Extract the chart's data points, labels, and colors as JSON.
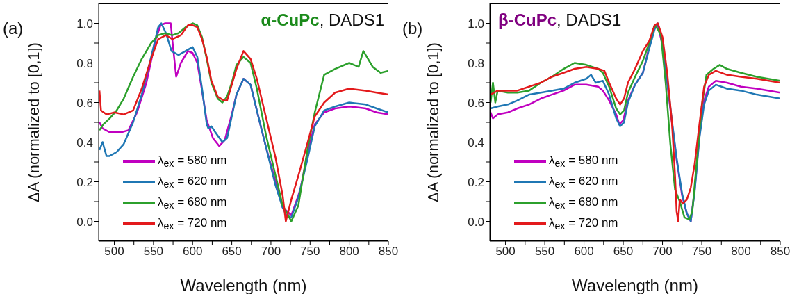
{
  "chart_data": [
    {
      "type": "line",
      "title": "α-CuPc, DADS1",
      "xlabel": "Wavelength (nm)",
      "ylabel": "ΔA (normalized to [0,1])",
      "annotations": [
        "(a)"
      ],
      "legend": "bottom left",
      "xlim": [
        480,
        850
      ],
      "ylim": [
        -0.1,
        1.1
      ],
      "xticks": [
        500,
        {
          "value": 525,
          "label": null
        },
        550,
        {
          "value": 575,
          "label": null
        },
        600,
        {
          "value": 625,
          "label": null
        },
        650,
        {
          "value": 675,
          "label": null
        },
        700,
        {
          "value": 725,
          "label": null
        },
        750,
        {
          "value": 775,
          "label": null
        },
        800,
        {
          "value": 825,
          "label": null
        },
        850
      ],
      "yticks": [
        {
          "value": 0,
          "label": "0.0"
        },
        {
          "value": 0.1,
          "label": null
        },
        0.2,
        {
          "value": 0.3,
          "label": null
        },
        0.4,
        {
          "value": 0.5,
          "label": null
        },
        0.6,
        {
          "value": 0.7,
          "label": null
        },
        0.8,
        {
          "value": 0.9,
          "label": null
        },
        {
          "value": 1,
          "label": "1.0"
        }
      ],
      "series": [
        {
          "name": "λ$_{ex}$ = 580 nm",
          "color": "#c000c0",
          "x": [
            481,
            485,
            494,
            509,
            518,
            529,
            541,
            553,
            559,
            565,
            572,
            575,
            579,
            585,
            594,
            600,
            606,
            612,
            618,
            626,
            634,
            641,
            650,
            656,
            665,
            674,
            682,
            694,
            706,
            715,
            721,
            726,
            735,
            738,
            747,
            756,
            768,
            782,
            800,
            821,
            835,
            850
          ],
          "values": [
            0.5,
            0.47,
            0.45,
            0.45,
            0.46,
            0.55,
            0.7,
            0.92,
            0.99,
            1.0,
            1.0,
            0.88,
            0.73,
            0.8,
            0.86,
            0.85,
            0.8,
            0.66,
            0.51,
            0.42,
            0.38,
            0.41,
            0.54,
            0.64,
            0.72,
            0.69,
            0.56,
            0.37,
            0.2,
            0.07,
            0.05,
            0.03,
            0.13,
            0.17,
            0.35,
            0.49,
            0.55,
            0.57,
            0.58,
            0.57,
            0.55,
            0.54
          ]
        },
        {
          "name": "λ$_{ex}$ = 620 nm",
          "color": "#1f77b4",
          "x": [
            481,
            485,
            490,
            494,
            503,
            512,
            524,
            535,
            547,
            556,
            560,
            566,
            573,
            582,
            591,
            600,
            606,
            612,
            618,
            620,
            624,
            629,
            638,
            644,
            650,
            656,
            665,
            674,
            682,
            694,
            706,
            715,
            721,
            726,
            735,
            747,
            756,
            768,
            782,
            800,
            821,
            835,
            850
          ],
          "values": [
            0.36,
            0.4,
            0.33,
            0.33,
            0.35,
            0.39,
            0.5,
            0.64,
            0.83,
            0.98,
            1.0,
            0.95,
            0.86,
            0.84,
            0.86,
            0.88,
            0.83,
            0.67,
            0.49,
            0.47,
            0.48,
            0.45,
            0.4,
            0.42,
            0.53,
            0.64,
            0.72,
            0.69,
            0.56,
            0.37,
            0.18,
            0.07,
            0.02,
            0.02,
            0.12,
            0.32,
            0.48,
            0.56,
            0.58,
            0.6,
            0.59,
            0.57,
            0.55
          ]
        },
        {
          "name": "λ$_{ex}$ = 680 nm",
          "color": "#2ca02c",
          "x": [
            481,
            486,
            494,
            503,
            512,
            524,
            535,
            547,
            556,
            565,
            574,
            582,
            591,
            600,
            606,
            612,
            618,
            624,
            632,
            638,
            644,
            650,
            656,
            665,
            674,
            682,
            694,
            706,
            715,
            721,
            726,
            735,
            747,
            756,
            768,
            782,
            800,
            812,
            818,
            830,
            840,
            850
          ],
          "values": [
            0.46,
            0.49,
            0.52,
            0.56,
            0.62,
            0.73,
            0.82,
            0.9,
            0.94,
            0.95,
            0.94,
            0.95,
            0.98,
            1.0,
            0.99,
            0.93,
            0.82,
            0.7,
            0.62,
            0.6,
            0.63,
            0.7,
            0.79,
            0.83,
            0.8,
            0.67,
            0.43,
            0.23,
            0.08,
            0.04,
            0.0,
            0.08,
            0.37,
            0.55,
            0.74,
            0.77,
            0.8,
            0.78,
            0.86,
            0.78,
            0.75,
            0.76
          ]
        },
        {
          "name": "λ$_{ex}$ = 720 nm",
          "color": "#e31a1c",
          "x": [
            481,
            483,
            490,
            500,
            512,
            524,
            535,
            547,
            556,
            566,
            574,
            585,
            594,
            600,
            606,
            612,
            618,
            624,
            632,
            640,
            644,
            650,
            656,
            665,
            674,
            682,
            694,
            706,
            715,
            719,
            726,
            735,
            747,
            756,
            768,
            782,
            800,
            821,
            835,
            850
          ],
          "values": [
            0.66,
            0.56,
            0.54,
            0.55,
            0.54,
            0.56,
            0.67,
            0.82,
            0.92,
            0.94,
            0.92,
            0.94,
            0.99,
            0.99,
            0.98,
            0.92,
            0.83,
            0.71,
            0.63,
            0.61,
            0.61,
            0.69,
            0.77,
            0.86,
            0.82,
            0.72,
            0.52,
            0.32,
            0.13,
            0.0,
            0.11,
            0.23,
            0.4,
            0.53,
            0.6,
            0.65,
            0.67,
            0.66,
            0.65,
            0.64
          ]
        }
      ]
    },
    {
      "type": "line",
      "title": "β-CuPc, DADS1",
      "xlabel": "Wavelength (nm)",
      "ylabel": "ΔA (normalized to [0,1])",
      "annotations": [
        "(b)"
      ],
      "legend": "bottom left",
      "xlim": [
        480,
        850
      ],
      "ylim": [
        -0.1,
        1.1
      ],
      "xticks": [
        500,
        {
          "value": 525,
          "label": null
        },
        550,
        {
          "value": 575,
          "label": null
        },
        600,
        {
          "value": 625,
          "label": null
        },
        650,
        {
          "value": 675,
          "label": null
        },
        700,
        {
          "value": 725,
          "label": null
        },
        750,
        {
          "value": 775,
          "label": null
        },
        800,
        {
          "value": 825,
          "label": null
        },
        850
      ],
      "yticks": [
        {
          "value": 0,
          "label": "0.0"
        },
        {
          "value": 0.1,
          "label": null
        },
        0.2,
        {
          "value": 0.3,
          "label": null
        },
        0.4,
        {
          "value": 0.5,
          "label": null
        },
        0.6,
        {
          "value": 0.7,
          "label": null
        },
        0.8,
        {
          "value": 0.9,
          "label": null
        },
        {
          "value": 1,
          "label": "1.0"
        }
      ],
      "series": [
        {
          "name": "λ$_{ex}$ = 580 nm",
          "color": "#c000c0",
          "x": [
            481,
            484,
            490,
            503,
            515,
            530,
            545,
            559,
            574,
            588,
            603,
            618,
            624,
            632,
            641,
            645,
            650,
            656,
            665,
            675,
            683,
            690,
            694,
            700,
            706,
            712,
            718,
            725,
            731,
            736,
            741,
            747,
            753,
            759,
            768,
            782,
            800,
            820,
            850
          ],
          "values": [
            0.55,
            0.52,
            0.54,
            0.55,
            0.57,
            0.59,
            0.62,
            0.64,
            0.66,
            0.69,
            0.69,
            0.68,
            0.66,
            0.61,
            0.54,
            0.49,
            0.51,
            0.61,
            0.69,
            0.75,
            0.88,
            0.99,
            0.99,
            0.89,
            0.7,
            0.5,
            0.31,
            0.13,
            0.04,
            0.0,
            0.16,
            0.43,
            0.61,
            0.68,
            0.71,
            0.7,
            0.68,
            0.67,
            0.65
          ]
        },
        {
          "name": "λ$_{ex}$ = 620 nm",
          "color": "#1f77b4",
          "x": [
            481,
            490,
            503,
            515,
            530,
            545,
            559,
            574,
            588,
            603,
            609,
            615,
            624,
            632,
            641,
            646,
            651,
            656,
            665,
            675,
            683,
            690,
            694,
            700,
            706,
            712,
            718,
            725,
            731,
            736,
            741,
            747,
            753,
            759,
            768,
            782,
            800,
            820,
            850
          ],
          "values": [
            0.57,
            0.58,
            0.59,
            0.61,
            0.64,
            0.65,
            0.66,
            0.67,
            0.7,
            0.72,
            0.74,
            0.7,
            0.71,
            0.64,
            0.52,
            0.48,
            0.5,
            0.6,
            0.69,
            0.75,
            0.87,
            0.97,
            1.0,
            0.9,
            0.71,
            0.51,
            0.32,
            0.14,
            0.04,
            0.0,
            0.15,
            0.42,
            0.59,
            0.66,
            0.69,
            0.67,
            0.66,
            0.64,
            0.62
          ]
        },
        {
          "name": "λ$_{ex}$ = 680 nm",
          "color": "#2ca02c",
          "x": [
            481,
            484,
            487,
            490,
            503,
            515,
            530,
            545,
            559,
            574,
            588,
            603,
            618,
            624,
            632,
            641,
            646,
            651,
            656,
            665,
            675,
            683,
            690,
            694,
            698,
            704,
            710,
            716,
            722,
            728,
            734,
            738,
            744,
            750,
            756,
            765,
            773,
            782,
            800,
            820,
            850
          ],
          "values": [
            0.6,
            0.7,
            0.6,
            0.66,
            0.65,
            0.65,
            0.66,
            0.7,
            0.73,
            0.77,
            0.8,
            0.79,
            0.77,
            0.75,
            0.68,
            0.57,
            0.54,
            0.56,
            0.65,
            0.73,
            0.81,
            0.9,
            0.99,
            0.97,
            0.94,
            0.7,
            0.39,
            0.16,
            0.1,
            0.02,
            0.01,
            0.05,
            0.32,
            0.58,
            0.74,
            0.77,
            0.79,
            0.77,
            0.75,
            0.73,
            0.71
          ]
        },
        {
          "name": "λ$_{ex}$ = 720 nm",
          "color": "#e31a1c",
          "x": [
            481,
            490,
            503,
            515,
            530,
            545,
            559,
            574,
            588,
            603,
            618,
            626,
            632,
            641,
            646,
            651,
            656,
            665,
            675,
            683,
            690,
            694,
            700,
            706,
            712,
            716,
            718,
            720,
            722,
            726,
            731,
            736,
            741,
            747,
            753,
            759,
            768,
            782,
            800,
            820,
            850
          ],
          "values": [
            0.64,
            0.66,
            0.66,
            0.66,
            0.68,
            0.7,
            0.73,
            0.75,
            0.77,
            0.78,
            0.77,
            0.76,
            0.7,
            0.62,
            0.59,
            0.62,
            0.7,
            0.77,
            0.86,
            0.91,
            0.99,
            1.0,
            0.93,
            0.75,
            0.5,
            0.23,
            0.05,
            0.0,
            0.11,
            0.09,
            0.11,
            0.17,
            0.29,
            0.49,
            0.68,
            0.74,
            0.76,
            0.74,
            0.73,
            0.72,
            0.7
          ]
        }
      ]
    }
  ]
}
